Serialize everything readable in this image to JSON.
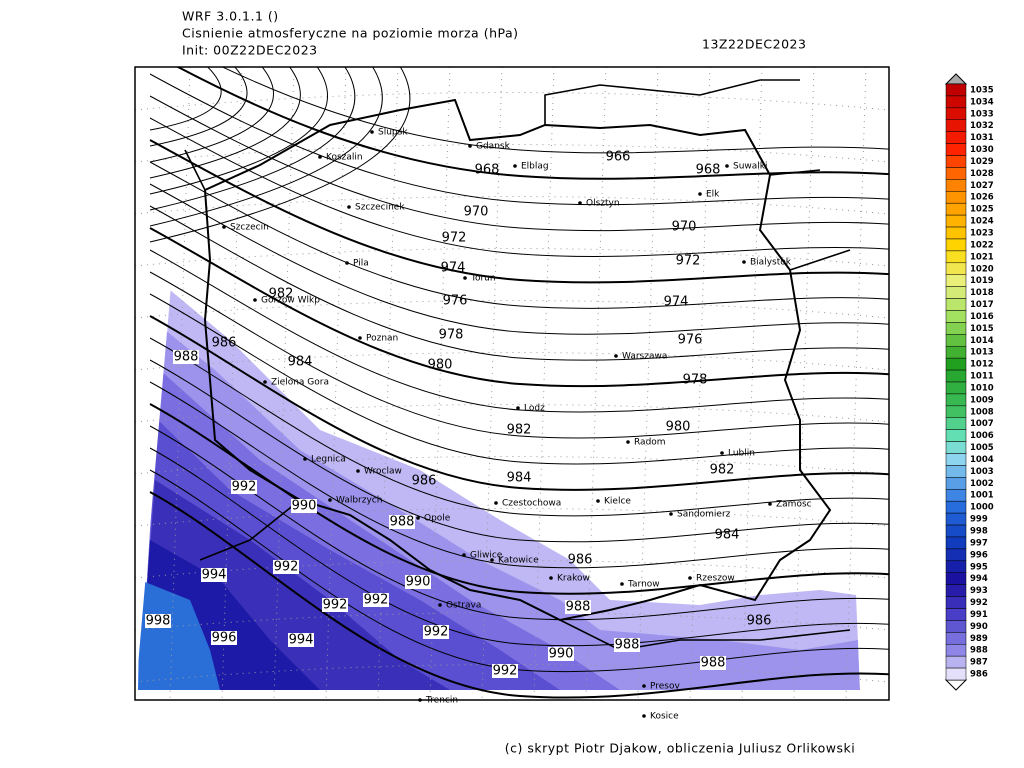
{
  "header": {
    "model": "WRF 3.0.1.1 ()",
    "field": "Cisnienie atmosferyczne na poziomie morza (hPa)",
    "init": "Init: 00Z22DEC2023",
    "valid": "13Z22DEC2023"
  },
  "cities": [
    "Slupsk",
    "Gdansk",
    "Elblag",
    "Koszalin",
    "Suwalki",
    "Elk",
    "Olsztyn",
    "Szczecinek",
    "Szczecin",
    "Bialystok",
    "Pila",
    "Torun",
    "Gorzow Wlkp",
    "Poznan",
    "Warszawa",
    "Zielona Gora",
    "Lodz",
    "Radom",
    "Lublin",
    "Legnica",
    "Wroclaw",
    "Kielce",
    "Czestochowa",
    "Zamosc",
    "Sandomierz",
    "Walbrzych",
    "Opole",
    "Gliwice",
    "Katowice",
    "Krakow",
    "Tarnow",
    "Rzeszow",
    "Ostrava",
    "Presov",
    "Kosice",
    "Trencin"
  ],
  "isobar_labels": [
    968,
    966,
    968,
    970,
    970,
    972,
    972,
    974,
    976,
    974,
    982,
    976,
    978,
    986,
    988,
    984,
    980,
    978,
    982,
    980,
    982,
    986,
    984,
    992,
    990,
    988,
    984,
    986,
    992,
    994,
    990,
    992,
    992,
    988,
    998,
    996,
    994,
    992,
    986,
    988,
    990,
    988,
    992
  ],
  "colorbar": {
    "labels": [
      1035,
      1034,
      1033,
      1032,
      1031,
      1030,
      1029,
      1028,
      1027,
      1026,
      1025,
      1024,
      1023,
      1022,
      1021,
      1020,
      1019,
      1018,
      1017,
      1016,
      1015,
      1014,
      1013,
      1012,
      1011,
      1010,
      1009,
      1008,
      1007,
      1006,
      1005,
      1004,
      1003,
      1002,
      1001,
      1000,
      999,
      998,
      997,
      996,
      995,
      994,
      993,
      992,
      991,
      990,
      989,
      988,
      987,
      986
    ]
  },
  "footer": "(c) skrypt Piotr Djakow, obliczenia Juliusz Orlikowski"
}
